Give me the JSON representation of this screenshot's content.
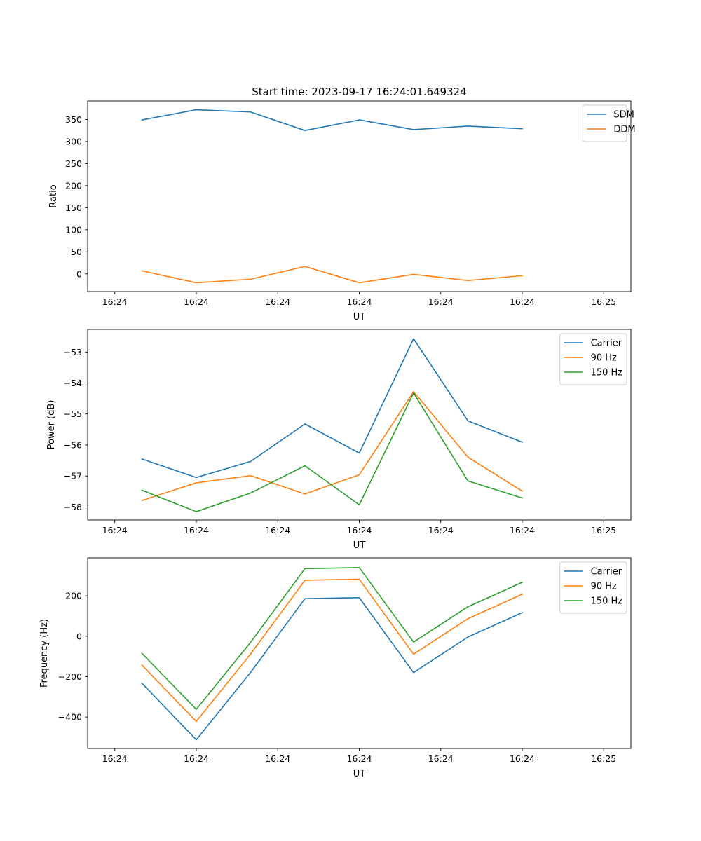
{
  "chart_data": [
    {
      "type": "line",
      "title": "Start time: 2023-09-17 16:24:01.649324",
      "xlabel": "UT",
      "ylabel": "Ratio",
      "x": [
        1,
        2,
        3,
        4,
        5,
        6,
        7,
        8
      ],
      "xlim": [
        0,
        10
      ],
      "xticks": [
        0.5,
        2,
        3.5,
        5,
        6.5,
        8,
        9.5
      ],
      "xtick_labels": [
        "16:24",
        "16:24",
        "16:24",
        "16:24",
        "16:24",
        "16:24",
        "16:25"
      ],
      "ylim": [
        -40,
        392
      ],
      "yticks": [
        0,
        50,
        100,
        150,
        200,
        250,
        300,
        350
      ],
      "ytick_labels": [
        "0",
        "50",
        "100",
        "150",
        "200",
        "250",
        "300",
        "350"
      ],
      "legend": "top-right",
      "series": [
        {
          "name": "SDM",
          "color": "#1f77b4",
          "values": [
            349,
            372,
            367,
            325,
            349,
            327,
            335,
            329
          ]
        },
        {
          "name": "DDM",
          "color": "#ff7f0e",
          "values": [
            7,
            -20,
            -12,
            17,
            -20,
            -1,
            -15,
            -4
          ]
        }
      ]
    },
    {
      "type": "line",
      "title": "",
      "xlabel": "UT",
      "ylabel": "Power (dB)",
      "x": [
        1,
        2,
        3,
        4,
        5,
        6,
        7,
        8
      ],
      "xlim": [
        0,
        10
      ],
      "xticks": [
        0.5,
        2,
        3.5,
        5,
        6.5,
        8,
        9.5
      ],
      "xtick_labels": [
        "16:24",
        "16:24",
        "16:24",
        "16:24",
        "16:24",
        "16:24",
        "16:25"
      ],
      "ylim": [
        -58.42,
        -52.27
      ],
      "yticks": [
        -58,
        -57,
        -56,
        -55,
        -54,
        -53
      ],
      "ytick_labels": [
        "−58",
        "−57",
        "−56",
        "−55",
        "−54",
        "−53"
      ],
      "legend": "top-right",
      "series": [
        {
          "name": "Carrier",
          "color": "#1f77b4",
          "values": [
            -56.45,
            -57.05,
            -56.53,
            -55.32,
            -56.26,
            -52.57,
            -55.22,
            -55.91
          ]
        },
        {
          "name": "90 Hz",
          "color": "#ff7f0e",
          "values": [
            -57.79,
            -57.22,
            -56.99,
            -57.58,
            -56.96,
            -54.28,
            -56.39,
            -57.49
          ]
        },
        {
          "name": "150 Hz",
          "color": "#2ca02c",
          "values": [
            -57.46,
            -58.15,
            -57.55,
            -56.67,
            -57.93,
            -54.32,
            -57.16,
            -57.71
          ]
        }
      ]
    },
    {
      "type": "line",
      "title": "",
      "xlabel": "UT",
      "ylabel": "Frequency (Hz)",
      "x": [
        1,
        2,
        3,
        4,
        5,
        6,
        7,
        8
      ],
      "xlim": [
        0,
        10
      ],
      "xticks": [
        0.5,
        2,
        3.5,
        5,
        6.5,
        8,
        9.5
      ],
      "xtick_labels": [
        "16:24",
        "16:24",
        "16:24",
        "16:24",
        "16:24",
        "16:24",
        "16:25"
      ],
      "ylim": [
        -556,
        388
      ],
      "yticks": [
        -400,
        -200,
        0,
        200
      ],
      "ytick_labels": [
        "−400",
        "−200",
        "0",
        "200"
      ],
      "legend": "top-right",
      "series": [
        {
          "name": "Carrier",
          "color": "#1f77b4",
          "values": [
            -233,
            -513,
            -179,
            186,
            191,
            -180,
            -4,
            117
          ]
        },
        {
          "name": "90 Hz",
          "color": "#ff7f0e",
          "values": [
            -143,
            -422,
            -88,
            277,
            282,
            -89,
            87,
            208
          ]
        },
        {
          "name": "150 Hz",
          "color": "#2ca02c",
          "values": [
            -85,
            -362,
            -30,
            335,
            340,
            -29,
            146,
            267
          ]
        }
      ]
    }
  ]
}
